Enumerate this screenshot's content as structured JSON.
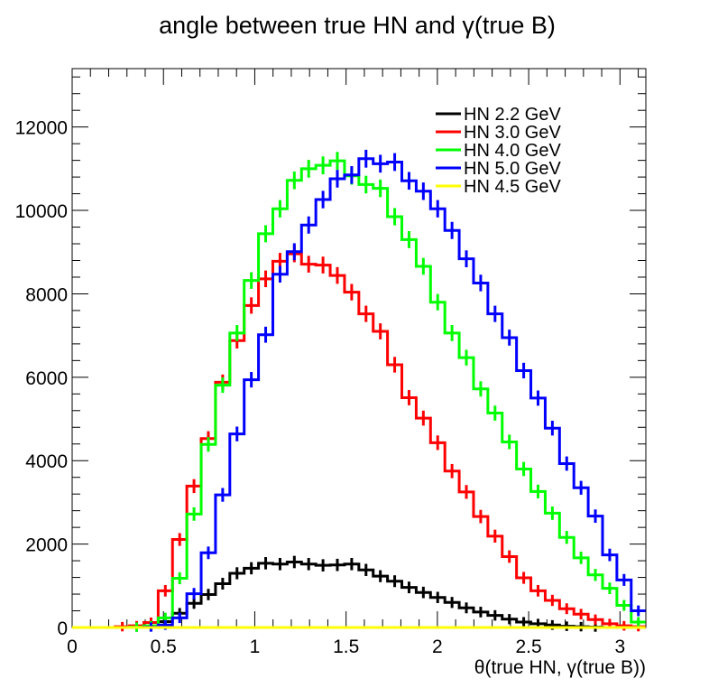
{
  "chart_data": {
    "type": "line",
    "style": "step-histogram",
    "title": "angle between true HN and  γ(true B)",
    "xlabel": "θ(true HN, γ(true B))",
    "ylabel": "",
    "xlim": [
      0,
      3.1416
    ],
    "ylim": [
      0,
      13400
    ],
    "bin_width": 0.0785,
    "x_ticks": [
      0,
      0.5,
      1,
      1.5,
      2,
      2.5,
      3
    ],
    "x_tick_labels": [
      "0",
      "0.5",
      "1",
      "1.5",
      "2",
      "2.5",
      "3"
    ],
    "y_ticks": [
      0,
      2000,
      4000,
      6000,
      8000,
      10000,
      12000
    ],
    "y_tick_labels": [
      "0",
      "2000",
      "4000",
      "6000",
      "8000",
      "10000",
      "12000"
    ],
    "grid": false,
    "legend_position": "top-right",
    "series": [
      {
        "name": "HN 2.2 GeV",
        "color": "#000000",
        "values": [
          0,
          0,
          0,
          0,
          10,
          30,
          140,
          340,
          580,
          790,
          1050,
          1300,
          1420,
          1540,
          1520,
          1570,
          1520,
          1490,
          1500,
          1520,
          1380,
          1230,
          1110,
          960,
          840,
          720,
          600,
          470,
          370,
          290,
          200,
          130,
          90,
          60,
          30,
          20,
          10,
          0,
          0,
          0
        ]
      },
      {
        "name": "HN 3.0 GeV",
        "color": "#ff0000",
        "values": [
          0,
          0,
          0,
          20,
          40,
          120,
          880,
          2110,
          3390,
          4530,
          5880,
          6880,
          7720,
          8360,
          8780,
          8960,
          8710,
          8690,
          8440,
          8040,
          7520,
          7100,
          6300,
          5510,
          5020,
          4430,
          3750,
          3250,
          2660,
          2190,
          1700,
          1190,
          880,
          650,
          450,
          320,
          190,
          90,
          40,
          20
        ]
      },
      {
        "name": "HN 4.0 GeV",
        "color": "#00ff00",
        "values": [
          0,
          0,
          0,
          0,
          10,
          40,
          230,
          1180,
          2720,
          4390,
          5810,
          7060,
          8320,
          9440,
          10040,
          10720,
          11000,
          11080,
          11190,
          10830,
          10620,
          10530,
          9850,
          9300,
          8660,
          7800,
          7060,
          6470,
          5720,
          5140,
          4450,
          3800,
          3260,
          2740,
          2160,
          1670,
          1260,
          940,
          530,
          130
        ]
      },
      {
        "name": "HN 5.0 GeV",
        "color": "#0000ff",
        "values": [
          0,
          0,
          0,
          0,
          0,
          10,
          60,
          230,
          810,
          1790,
          3180,
          4640,
          5940,
          7020,
          8470,
          9010,
          9650,
          10260,
          10760,
          10850,
          11240,
          11120,
          11160,
          10710,
          10460,
          10040,
          9520,
          8840,
          8260,
          7520,
          6950,
          6160,
          5500,
          4780,
          3930,
          3350,
          2670,
          1740,
          1140,
          400
        ]
      },
      {
        "name": "HN 4.5 GeV",
        "color": "#ffff00",
        "values": [
          0,
          0,
          0,
          0,
          0,
          0,
          0,
          0,
          0,
          0,
          0,
          0,
          0,
          0,
          0,
          0,
          0,
          0,
          0,
          0,
          0,
          0,
          0,
          0,
          0,
          0,
          0,
          0,
          0,
          0,
          0,
          0,
          0,
          0,
          0,
          0,
          0,
          0,
          0,
          0
        ]
      }
    ]
  }
}
